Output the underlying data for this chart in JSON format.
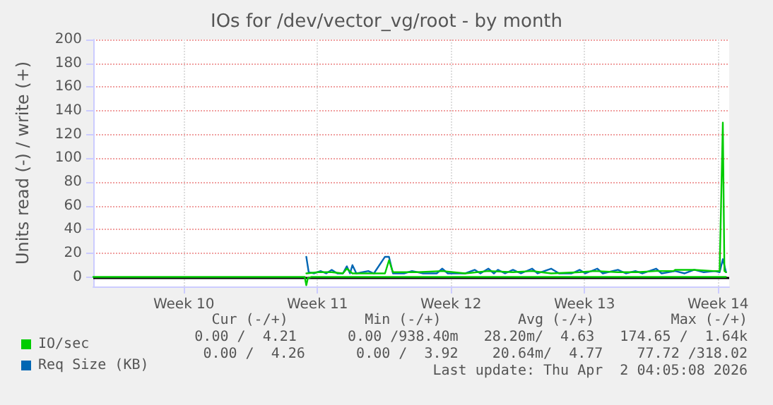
{
  "chart_data": {
    "type": "line",
    "title": "IOs for /dev/vector_vg/root - by month",
    "ylabel": "Units read (-) / write (+)",
    "xlim": [
      "2026-02-28T00:00",
      "2026-04-02T08:00"
    ],
    "xticks": [
      {
        "value": "2026-03-04T18:00",
        "label": "Week 10"
      },
      {
        "value": "2026-03-11T18:00",
        "label": "Week 11"
      },
      {
        "value": "2026-03-18T18:00",
        "label": "Week 12"
      },
      {
        "value": "2026-03-25T18:00",
        "label": "Week 13"
      },
      {
        "value": "2026-04-01T18:00",
        "label": "Week 14"
      }
    ],
    "ylim": [
      -8,
      200
    ],
    "yticks": [
      0,
      20,
      40,
      60,
      80,
      100,
      120,
      140,
      160,
      180,
      200
    ],
    "grid": true,
    "legend": "bottom left",
    "marker": "none",
    "line_style": "solid",
    "series": [
      {
        "name": "Req Size (KB)",
        "color": "#0066b3",
        "x": [
          "2026-03-11T04:00",
          "2026-03-11T07:00",
          "2026-03-11T14:00",
          "2026-03-11T22:00",
          "2026-03-12T05:00",
          "2026-03-12T12:00",
          "2026-03-12T19:00",
          "2026-03-13T02:00",
          "2026-03-13T07:00",
          "2026-03-13T11:00",
          "2026-03-13T14:00",
          "2026-03-13T19:00",
          "2026-03-14T10:00",
          "2026-03-14T17:00",
          "2026-03-15T07:00",
          "2026-03-15T12:00",
          "2026-03-15T17:00",
          "2026-03-16T07:00",
          "2026-03-16T17:00",
          "2026-03-17T07:00",
          "2026-03-18T00:00",
          "2026-03-18T07:00",
          "2026-03-18T14:00",
          "2026-03-19T12:00",
          "2026-03-20T00:00",
          "2026-03-20T07:00",
          "2026-03-20T17:00",
          "2026-03-21T00:00",
          "2026-03-21T05:00",
          "2026-03-21T14:00",
          "2026-03-22T00:00",
          "2026-03-22T10:00",
          "2026-03-23T00:00",
          "2026-03-23T07:00",
          "2026-03-24T00:00",
          "2026-03-24T10:00",
          "2026-03-25T02:00",
          "2026-03-25T12:00",
          "2026-03-25T19:00",
          "2026-03-26T10:00",
          "2026-03-26T17:00",
          "2026-03-27T12:00",
          "2026-03-27T22:00",
          "2026-03-28T10:00",
          "2026-03-28T19:00",
          "2026-03-29T12:00",
          "2026-03-29T19:00",
          "2026-03-30T12:00",
          "2026-03-31T00:00",
          "2026-03-31T12:00",
          "2026-04-01T00:00",
          "2026-04-01T14:00",
          "2026-04-01T20:00",
          "2026-04-02T00:00",
          "2026-04-02T04:00"
        ],
        "values": [
          17,
          4,
          3,
          5,
          3,
          6,
          3,
          3,
          9,
          3,
          10,
          3,
          5,
          3,
          17,
          17,
          3,
          3,
          5,
          3,
          3,
          7,
          3,
          3,
          6,
          3,
          7,
          3,
          6,
          3,
          6,
          3,
          7,
          3,
          7,
          3,
          3,
          6,
          3,
          7,
          3,
          6,
          3,
          5,
          3,
          7,
          3,
          5,
          3,
          6,
          4,
          5,
          4,
          15,
          4
        ]
      },
      {
        "name": "IO/sec",
        "color": "#00cc00",
        "x": [
          "2026-03-11T04:00",
          "2026-03-11T19:00",
          "2026-03-12T12:00",
          "2026-03-13T02:00",
          "2026-03-13T07:00",
          "2026-03-13T14:00",
          "2026-03-14T12:00",
          "2026-03-15T07:00",
          "2026-03-15T12:00",
          "2026-03-15T17:00",
          "2026-03-17T00:00",
          "2026-03-18T07:00",
          "2026-03-19T12:00",
          "2026-03-20T17:00",
          "2026-03-22T00:00",
          "2026-03-23T00:00",
          "2026-03-24T00:00",
          "2026-03-25T12:00",
          "2026-03-26T07:00",
          "2026-03-27T12:00",
          "2026-03-28T12:00",
          "2026-03-29T12:00",
          "2026-03-30T10:00",
          "2026-03-30T12:00",
          "2026-03-31T12:00",
          "2026-04-01T12:00",
          "2026-04-01T20:00",
          "2026-04-02T00:00",
          "2026-04-02T02:00",
          "2026-04-02T04:00"
        ],
        "values": [
          3,
          4,
          4,
          3,
          7,
          3,
          3,
          3,
          14,
          4,
          4,
          5,
          3,
          5,
          4,
          5,
          3,
          4,
          5,
          4,
          4,
          5,
          5,
          6,
          6,
          5,
          5,
          130,
          5,
          4
        ]
      },
      {
        "color": "#00cc00",
        "x": [
          "2026-02-28T00:00",
          "2026-03-11T02:00",
          "2026-03-11T04:00",
          "2026-03-11T06:00",
          "2026-03-11T10:00",
          "2026-04-02T04:00"
        ],
        "values": [
          0,
          0,
          -7,
          -1,
          0,
          0
        ]
      }
    ],
    "ref_lines": [
      {
        "axis": "y",
        "value": 0,
        "color": "#000000"
      }
    ],
    "annotations": [
      "Cur (-/+)         Min (-/+)         Avg (-/+)         Max (-/+)",
      "0.00 /  4.21      0.00 /938.40m   28.20m/  4.63   174.65 /  1.64k",
      "0.00 /  4.26      0.00 /  3.92    20.64m/  4.77    77.72 /318.02",
      "Last update: Thu Apr  2 04:05:08 2026"
    ]
  }
}
